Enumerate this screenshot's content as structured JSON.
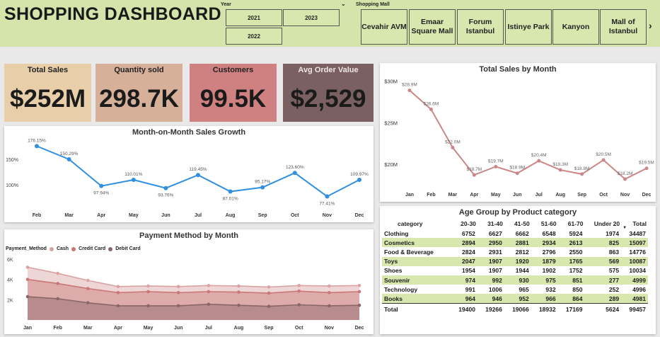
{
  "header": {
    "title": "SHOPPING DASHBOARD",
    "year_label": "Year",
    "years": [
      "2021",
      "2023",
      "2022"
    ],
    "mall_label": "Shopping Mall",
    "malls": [
      "Cevahir AVM",
      "Emaar Square Mall",
      "Forum Istanbul",
      "Istinye Park",
      "Kanyon",
      "Mall of Istanbul"
    ],
    "more_arrow": "›"
  },
  "kpis": [
    {
      "label": "Total Sales",
      "value": "$252M",
      "color": "#e8cfaa"
    },
    {
      "label": "Quantity sold",
      "value": "298.7K",
      "color": "#d6b099"
    },
    {
      "label": "Customers",
      "value": "99.5K",
      "color": "#cf8080"
    },
    {
      "label": "Avg Order Value",
      "value": "$2,529",
      "color": "#7a6060"
    }
  ],
  "chart_data": [
    {
      "id": "growth",
      "type": "line",
      "title": "Month-on-Month Sales Growth",
      "categories": [
        "Feb",
        "Mar",
        "Apr",
        "May",
        "Jun",
        "Jul",
        "Aug",
        "Sep",
        "Oct",
        "Nov",
        "Dec"
      ],
      "values": [
        176.15,
        150.29,
        97.94,
        110.01,
        93.76,
        119.45,
        87.01,
        95.17,
        123.6,
        77.41,
        109.97
      ],
      "labels": [
        "176.15%",
        "150.29%",
        "97.94%",
        "110.01%",
        "93.76%",
        "119.45%",
        "87.01%",
        "95.17%",
        "123.60%",
        "77.41%",
        "109.97%"
      ],
      "yticks": [
        "150%",
        "100%"
      ],
      "ylim": [
        60,
        185
      ],
      "color": "#2f8fe0"
    },
    {
      "id": "monthly",
      "type": "line",
      "title": "Total Sales by Month",
      "categories": [
        "Jan",
        "Feb",
        "Mar",
        "Apr",
        "May",
        "Jun",
        "Jul",
        "Aug",
        "Sep",
        "Oct",
        "Nov",
        "Dec"
      ],
      "values": [
        28.9,
        26.6,
        22.0,
        18.7,
        19.7,
        18.9,
        20.4,
        19.3,
        18.8,
        20.5,
        18.2,
        19.5
      ],
      "labels": [
        "$28.9M",
        "$26.6M",
        "$22.0M",
        "$18.7M",
        "$19.7M",
        "$18.9M",
        "$20.4M",
        "$19.3M",
        "$18.8M",
        "$20.5M",
        "$18.2M",
        "$19.5M"
      ],
      "yticks": [
        "$30M",
        "$25M",
        "$20M"
      ],
      "ylim": [
        17,
        31
      ],
      "color": "#c98787"
    },
    {
      "id": "payment",
      "type": "area",
      "title": "Payment Method by Month",
      "legend_title": "Payment_Method",
      "categories": [
        "Jan",
        "Feb",
        "Mar",
        "Apr",
        "May",
        "Jun",
        "Jul",
        "Aug",
        "Sep",
        "Oct",
        "Nov",
        "Dec"
      ],
      "series": [
        {
          "name": "Cash",
          "values": [
            5200,
            4600,
            3900,
            3300,
            3350,
            3300,
            3400,
            3350,
            3250,
            3400,
            3350,
            3400
          ],
          "color": "#d9a3a3"
        },
        {
          "name": "Credit Card",
          "values": [
            4000,
            3600,
            3100,
            2700,
            2800,
            2700,
            2800,
            2750,
            2650,
            2850,
            2700,
            2800
          ],
          "color": "#c97777"
        },
        {
          "name": "Debit Card",
          "values": [
            2300,
            2100,
            1700,
            1400,
            1400,
            1400,
            1550,
            1450,
            1350,
            1500,
            1400,
            1450
          ],
          "color": "#8a6767"
        }
      ],
      "yticks": [
        "6K",
        "4K",
        "2K"
      ],
      "ylim": [
        0,
        6000
      ]
    }
  ],
  "table": {
    "title": "Age Group by Product category",
    "columns": [
      "category",
      "20-30",
      "31-40",
      "41-50",
      "51-60",
      "61-70",
      "Under 20",
      "Total"
    ],
    "sort_icon": "▼",
    "rows": [
      [
        "Clothing",
        "6752",
        "6627",
        "6662",
        "6548",
        "5924",
        "1974",
        "34487"
      ],
      [
        "Cosmetics",
        "2894",
        "2950",
        "2881",
        "2934",
        "2613",
        "825",
        "15097"
      ],
      [
        "Food & Beverage",
        "2824",
        "2931",
        "2812",
        "2796",
        "2550",
        "863",
        "14776"
      ],
      [
        "Toys",
        "2047",
        "1907",
        "1920",
        "1879",
        "1765",
        "569",
        "10087"
      ],
      [
        "Shoes",
        "1954",
        "1907",
        "1944",
        "1902",
        "1752",
        "575",
        "10034"
      ],
      [
        "Souvenir",
        "974",
        "992",
        "930",
        "975",
        "851",
        "277",
        "4999"
      ],
      [
        "Technology",
        "991",
        "1006",
        "965",
        "932",
        "850",
        "252",
        "4996"
      ],
      [
        "Books",
        "964",
        "946",
        "952",
        "966",
        "864",
        "289",
        "4981"
      ]
    ],
    "total_row": [
      "Total",
      "19400",
      "19266",
      "19066",
      "18932",
      "17169",
      "5624",
      "99457"
    ]
  }
}
